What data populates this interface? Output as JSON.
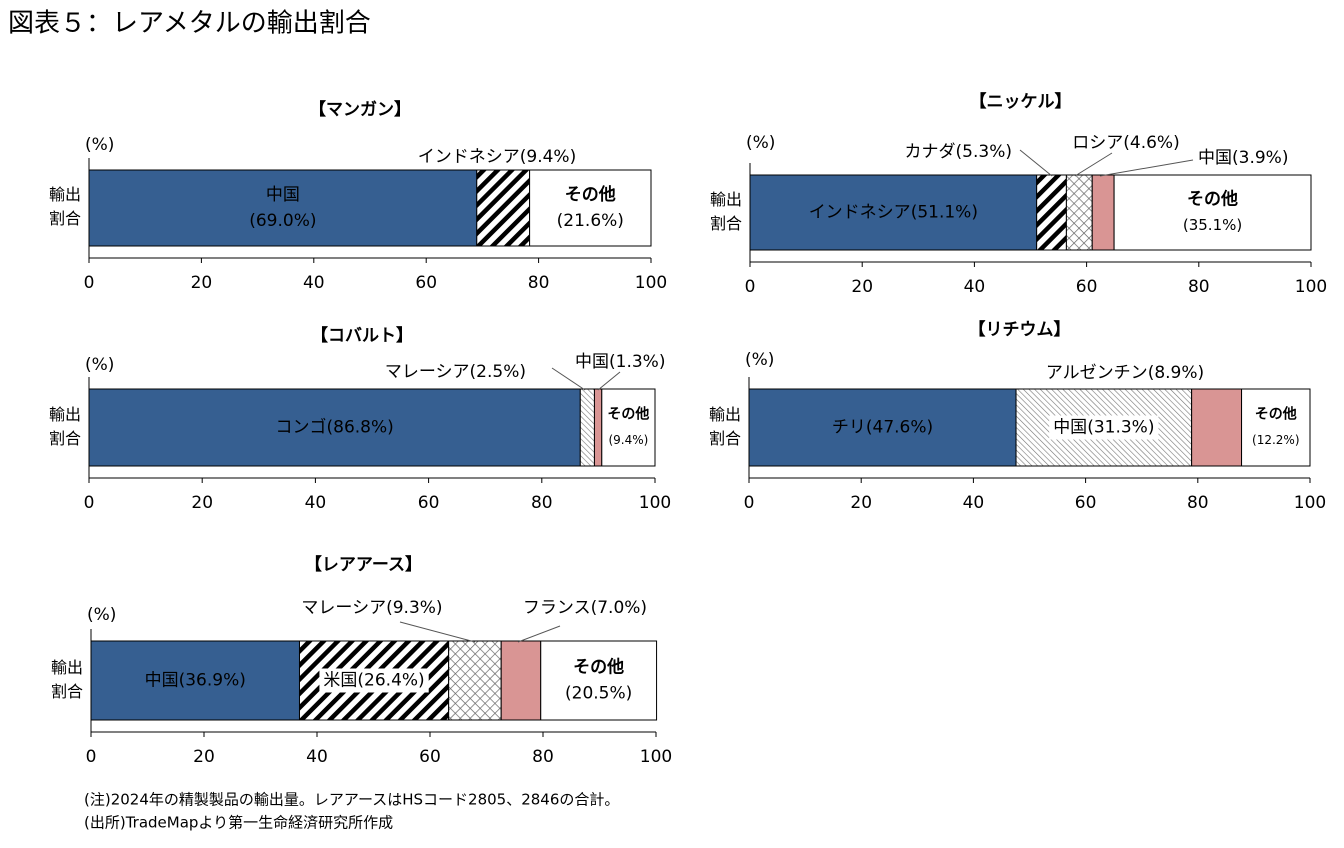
{
  "title": "図表５：レアメタルの輸出割合",
  "chart_data": [
    {
      "type": "stacked-bar",
      "title": "【マンガン】",
      "unit": "(%)",
      "categories": [
        "輸出割合"
      ],
      "series": [
        {
          "name": "中国",
          "color": "#365f91",
          "values": [
            69.0
          ],
          "value_labels": [
            "(69.0%)"
          ]
        },
        {
          "name": "インドネシア",
          "pattern": "hatch",
          "values": [
            9.4
          ],
          "value_labels": [
            "(9.4%)"
          ]
        },
        {
          "name": "その他",
          "color": "#ffffff",
          "values": [
            21.6
          ],
          "value_labels": [
            "(21.6%)"
          ]
        }
      ],
      "xlim": [
        0,
        100
      ],
      "xticks": [
        0,
        20,
        40,
        60,
        80,
        100
      ]
    },
    {
      "type": "stacked-bar",
      "title": "【ニッケル】",
      "unit": "(%)",
      "categories": [
        "輸出割合"
      ],
      "series": [
        {
          "name": "インドネシア",
          "color": "#365f91",
          "values": [
            51.1
          ],
          "value_labels": [
            "(51.1%)"
          ]
        },
        {
          "name": "カナダ",
          "pattern": "hatch",
          "values": [
            5.3
          ],
          "value_labels": [
            "(5.3%)"
          ]
        },
        {
          "name": "ロシア",
          "pattern": "crosshatch",
          "values": [
            4.6
          ],
          "value_labels": [
            "(4.6%)"
          ]
        },
        {
          "name": "中国",
          "color": "#d99594",
          "values": [
            3.9
          ],
          "value_labels": [
            "(3.9%)"
          ]
        },
        {
          "name": "その他",
          "color": "#ffffff",
          "values": [
            35.1
          ],
          "value_labels": [
            "(35.1%)"
          ]
        }
      ],
      "xlim": [
        0,
        100
      ],
      "xticks": [
        0,
        20,
        40,
        60,
        80,
        100
      ]
    },
    {
      "type": "stacked-bar",
      "title": "【コバルト】",
      "unit": "(%)",
      "categories": [
        "輸出割合"
      ],
      "series": [
        {
          "name": "コンゴ",
          "color": "#365f91",
          "values": [
            86.8
          ],
          "value_labels": [
            "(86.8%)"
          ]
        },
        {
          "name": "マレーシア",
          "pattern": "fine-hatch",
          "values": [
            2.5
          ],
          "value_labels": [
            "(2.5%)"
          ]
        },
        {
          "name": "中国",
          "color": "#d99594",
          "values": [
            1.3
          ],
          "value_labels": [
            "(1.3%)"
          ]
        },
        {
          "name": "その他",
          "color": "#ffffff",
          "values": [
            9.4
          ],
          "value_labels": [
            "(9.4%)"
          ]
        }
      ],
      "xlim": [
        0,
        100
      ],
      "xticks": [
        0,
        20,
        40,
        60,
        80,
        100
      ]
    },
    {
      "type": "stacked-bar",
      "title": "【リチウム】",
      "unit": "(%)",
      "categories": [
        "輸出割合"
      ],
      "series": [
        {
          "name": "チリ",
          "color": "#365f91",
          "values": [
            47.6
          ],
          "value_labels": [
            "(47.6%)"
          ]
        },
        {
          "name": "中国",
          "pattern": "fine-hatch",
          "values": [
            31.3
          ],
          "value_labels": [
            "(31.3%)"
          ]
        },
        {
          "name": "アルゼンチン",
          "color": "#d99594",
          "values": [
            8.9
          ],
          "value_labels": [
            "(8.9%)"
          ]
        },
        {
          "name": "その他",
          "color": "#ffffff",
          "values": [
            12.2
          ],
          "value_labels": [
            "(12.2%)"
          ]
        }
      ],
      "xlim": [
        0,
        100
      ],
      "xticks": [
        0,
        20,
        40,
        60,
        80,
        100
      ]
    },
    {
      "type": "stacked-bar",
      "title": "【レアアース】",
      "unit": "(%)",
      "categories": [
        "輸出割合"
      ],
      "series": [
        {
          "name": "中国",
          "color": "#365f91",
          "values": [
            36.9
          ],
          "value_labels": [
            "(36.9%)"
          ]
        },
        {
          "name": "米国",
          "pattern": "hatch",
          "values": [
            26.4
          ],
          "value_labels": [
            "(26.4%)"
          ]
        },
        {
          "name": "マレーシア",
          "pattern": "crosshatch",
          "values": [
            9.3
          ],
          "value_labels": [
            "(9.3%)"
          ]
        },
        {
          "name": "フランス",
          "color": "#d99594",
          "values": [
            7.0
          ],
          "value_labels": [
            "(7.0%)"
          ]
        },
        {
          "name": "その他",
          "color": "#ffffff",
          "values": [
            20.5
          ],
          "value_labels": [
            "(20.5%)"
          ]
        }
      ],
      "xlim": [
        0,
        100
      ],
      "xticks": [
        0,
        20,
        40,
        60,
        80,
        100
      ]
    }
  ],
  "notes": [
    "(注)2024年の精製製品の輸出量。レアアースはHSコード2805、2846の合計。",
    "(出所)TradeMapより第一生命経済研究所作成"
  ]
}
